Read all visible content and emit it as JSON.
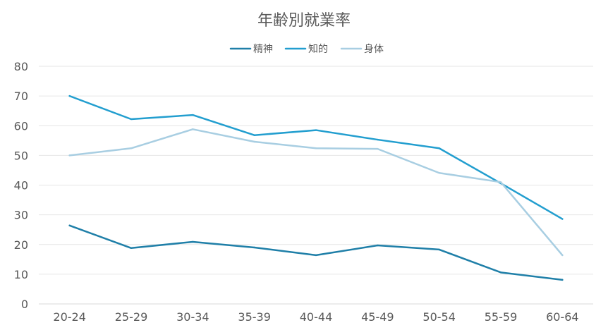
{
  "chart_data": {
    "type": "line",
    "title": "年齢別就業率",
    "xlabel": "",
    "ylabel": "",
    "categories": [
      "20-24",
      "25-29",
      "30-34",
      "35-39",
      "40-44",
      "45-49",
      "50-54",
      "55-59",
      "60-64"
    ],
    "ylim": [
      0,
      80
    ],
    "yticks": [
      0,
      10,
      20,
      30,
      40,
      50,
      60,
      70,
      80
    ],
    "grid": "horizontal",
    "legend_position": "top",
    "series": [
      {
        "name": "精神",
        "color": "#1f7fa8",
        "values": [
          26.4,
          18.8,
          20.9,
          19.0,
          16.4,
          19.7,
          18.3,
          10.6,
          8.1
        ]
      },
      {
        "name": "知的",
        "color": "#229ecf",
        "values": [
          70.0,
          62.2,
          63.6,
          56.8,
          58.5,
          55.3,
          52.4,
          40.6,
          28.6
        ]
      },
      {
        "name": "身体",
        "color": "#a8cee2",
        "values": [
          50.0,
          52.4,
          58.8,
          54.6,
          52.4,
          52.2,
          44.1,
          41.0,
          16.4
        ]
      }
    ]
  }
}
